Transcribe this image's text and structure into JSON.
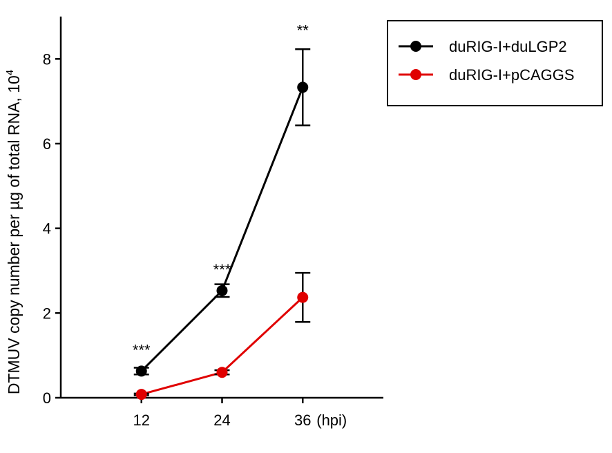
{
  "chart_data": {
    "type": "line",
    "title": "",
    "xlabel": "",
    "x_unit": "(hpi)",
    "ylabel": "DTMUV copy number  per µg of total RNA, 10",
    "ylabel_exponent": "4",
    "x": [
      12,
      24,
      36
    ],
    "x_tick_labels": [
      "12",
      "24",
      "36"
    ],
    "xlim": [
      0,
      48
    ],
    "ylim": [
      0,
      9
    ],
    "y_ticks": [
      0,
      2,
      4,
      6,
      8
    ],
    "y_tick_labels": [
      "0",
      "2",
      "4",
      "6",
      "8"
    ],
    "grid": false,
    "legend_position": "top-right",
    "series": [
      {
        "name": "duRIG-I+duLGP2",
        "color": "#000000",
        "values": [
          0.63,
          2.53,
          7.33
        ],
        "errors": [
          0.08,
          0.15,
          0.9
        ]
      },
      {
        "name": "duRIG-I+pCAGGS",
        "color": "#e00000",
        "values": [
          0.08,
          0.6,
          2.37
        ],
        "errors": [
          0.02,
          0.05,
          0.58
        ]
      }
    ],
    "annotations": [
      {
        "x": 12,
        "text": "***",
        "value_above": 1.2
      },
      {
        "x": 24,
        "text": "***",
        "value_above": 3.1
      },
      {
        "x": 36,
        "text": "**",
        "value_above": 8.75
      }
    ]
  }
}
